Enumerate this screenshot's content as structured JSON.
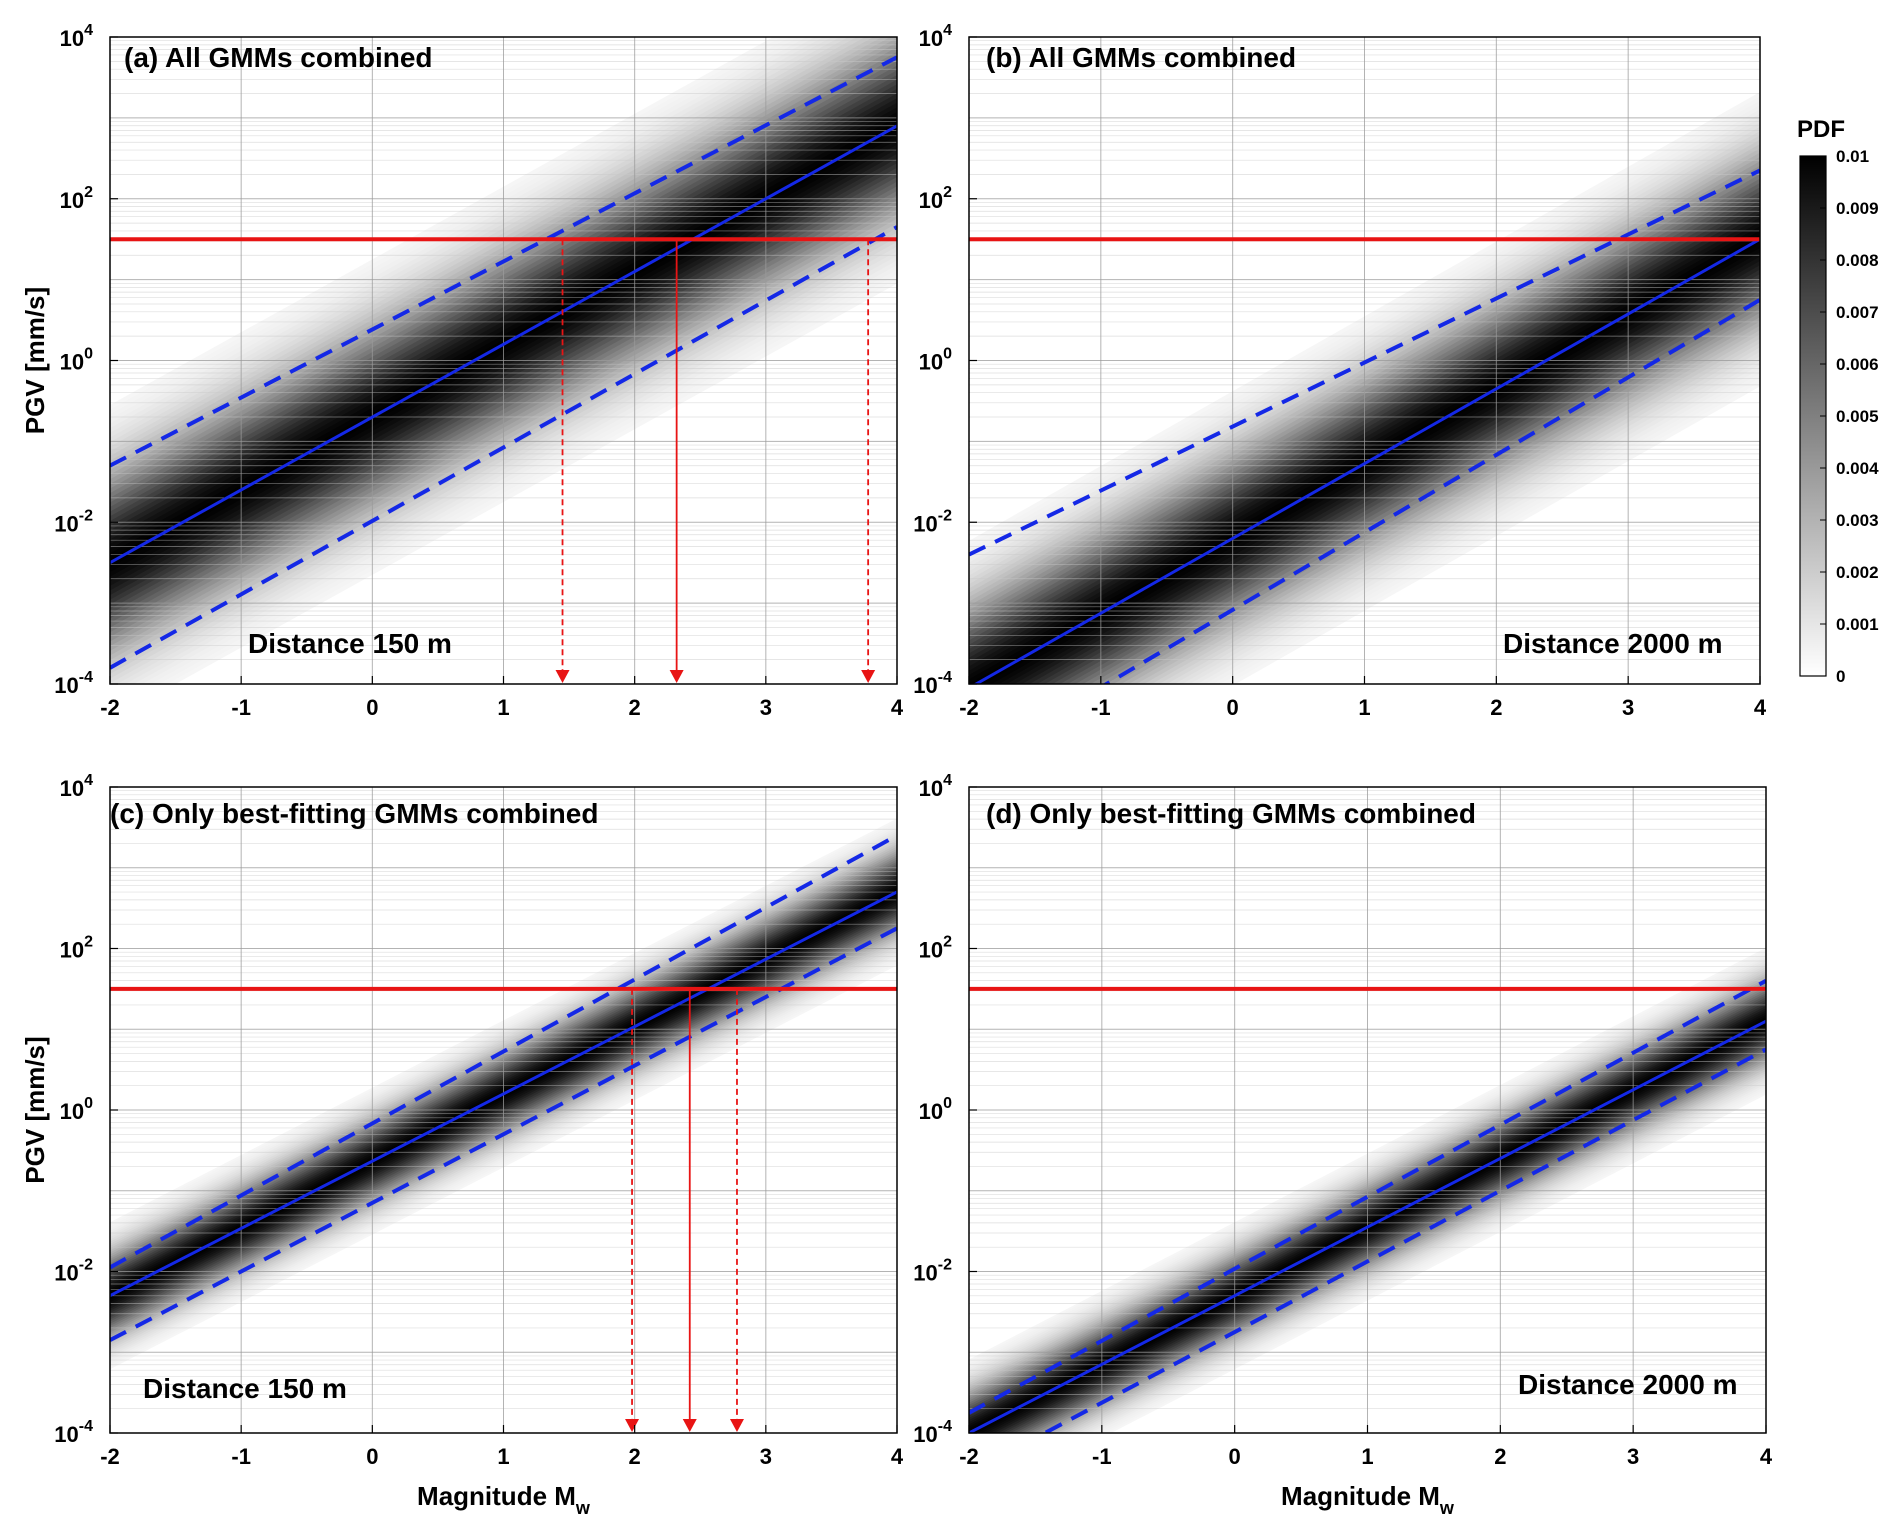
{
  "colors": {
    "mean_line": "#1428e6",
    "threshold": "#e81414",
    "pdf_high": "#000000",
    "pdf_low": "#ffffff"
  },
  "chart_data": [
    {
      "type": "heatmap",
      "panel_title": "(a) All GMMs combined",
      "annotation": "Distance 150 m",
      "xlabel": "",
      "ylabel": "PGV [mm/s]",
      "xlim": [
        -2,
        4
      ],
      "ylim_log10": [
        -4,
        4
      ],
      "yscale": "log",
      "x_ticks": [
        "-2",
        "-1",
        "0",
        "1",
        "2",
        "3",
        "4"
      ],
      "y_ticks": [
        {
          "base": "10",
          "exp": "-4"
        },
        {
          "base": "10",
          "exp": "-2"
        },
        {
          "base": "10",
          "exp": "0"
        },
        {
          "base": "10",
          "exp": "2"
        },
        {
          "base": "10",
          "exp": "4"
        }
      ],
      "grid": true,
      "pdf_spread_log10": 0.75,
      "series": [
        {
          "line": "solid",
          "x": [
            -2,
            4
          ],
          "log10_y": [
            -2.5,
            2.9
          ]
        },
        {
          "line": "dashed",
          "x": [
            -2,
            4
          ],
          "log10_y": [
            -1.3,
            3.75
          ]
        },
        {
          "line": "dashed",
          "x": [
            -2,
            4
          ],
          "log10_y": [
            -3.8,
            1.65
          ]
        }
      ],
      "threshold_log10": 1.5,
      "arrows": [
        {
          "x": 1.45,
          "style": "dashed"
        },
        {
          "x": 2.32,
          "style": "solid"
        },
        {
          "x": 3.78,
          "style": "dashed"
        }
      ]
    },
    {
      "type": "heatmap",
      "panel_title": "(b) All GMMs combined",
      "annotation": "Distance 2000 m",
      "xlabel": "",
      "ylabel": "",
      "xlim": [
        -2,
        4
      ],
      "ylim_log10": [
        -4,
        4
      ],
      "yscale": "log",
      "x_ticks": [
        "-2",
        "-1",
        "0",
        "1",
        "2",
        "3",
        "4"
      ],
      "y_ticks": [
        {
          "base": "10",
          "exp": "-4"
        },
        {
          "base": "10",
          "exp": "-2"
        },
        {
          "base": "10",
          "exp": "0"
        },
        {
          "base": "10",
          "exp": "2"
        },
        {
          "base": "10",
          "exp": "4"
        }
      ],
      "grid": true,
      "pdf_spread_log10": 0.7,
      "series": [
        {
          "line": "solid",
          "x": [
            -2,
            4
          ],
          "log10_y": [
            -4.05,
            1.5
          ]
        },
        {
          "line": "dashed",
          "x": [
            -2,
            4
          ],
          "log10_y": [
            -2.4,
            2.35
          ]
        },
        {
          "line": "dashed",
          "x": [
            -2,
            4
          ],
          "log10_y": [
            -5.0,
            0.75
          ]
        }
      ],
      "threshold_log10": 1.5,
      "arrows": []
    },
    {
      "type": "heatmap",
      "panel_title": "(c) Only best-fitting GMMs combined",
      "annotation": "Distance 150 m",
      "xlabel": "Magnitude M",
      "xlabel_sub": "w",
      "ylabel": "PGV [mm/s]",
      "xlim": [
        -2,
        4
      ],
      "ylim_log10": [
        -4,
        4
      ],
      "yscale": "log",
      "x_ticks": [
        "-2",
        "-1",
        "0",
        "1",
        "2",
        "3",
        "4"
      ],
      "y_ticks": [
        {
          "base": "10",
          "exp": "-4"
        },
        {
          "base": "10",
          "exp": "-2"
        },
        {
          "base": "10",
          "exp": "0"
        },
        {
          "base": "10",
          "exp": "2"
        },
        {
          "base": "10",
          "exp": "4"
        }
      ],
      "grid": true,
      "pdf_spread_log10": 0.35,
      "series": [
        {
          "line": "solid",
          "x": [
            -2,
            4
          ],
          "log10_y": [
            -2.3,
            2.7
          ]
        },
        {
          "line": "dashed",
          "x": [
            -2,
            4
          ],
          "log10_y": [
            -1.95,
            3.4
          ]
        },
        {
          "line": "dashed",
          "x": [
            -2,
            4
          ],
          "log10_y": [
            -2.85,
            2.25
          ]
        }
      ],
      "threshold_log10": 1.5,
      "arrows": [
        {
          "x": 1.98,
          "style": "dashed"
        },
        {
          "x": 2.42,
          "style": "solid"
        },
        {
          "x": 2.78,
          "style": "dashed"
        }
      ]
    },
    {
      "type": "heatmap",
      "panel_title": "(d) Only best-fitting GMMs combined",
      "annotation": "Distance 2000 m",
      "xlabel": "Magnitude M",
      "xlabel_sub": "w",
      "ylabel": "",
      "xlim": [
        -2,
        4
      ],
      "ylim_log10": [
        -4,
        4
      ],
      "yscale": "log",
      "x_ticks": [
        "-2",
        "-1",
        "0",
        "1",
        "2",
        "3",
        "4"
      ],
      "y_ticks": [
        {
          "base": "10",
          "exp": "-4"
        },
        {
          "base": "10",
          "exp": "-2"
        },
        {
          "base": "10",
          "exp": "0"
        },
        {
          "base": "10",
          "exp": "2"
        },
        {
          "base": "10",
          "exp": "4"
        }
      ],
      "grid": true,
      "pdf_spread_log10": 0.35,
      "series": [
        {
          "line": "solid",
          "x": [
            -2,
            4
          ],
          "log10_y": [
            -4.0,
            1.1
          ]
        },
        {
          "line": "dashed",
          "x": [
            -2,
            4
          ],
          "log10_y": [
            -3.75,
            1.6
          ]
        },
        {
          "line": "dashed",
          "x": [
            -2,
            4
          ],
          "log10_y": [
            -4.5,
            0.75
          ]
        }
      ],
      "threshold_log10": 1.5,
      "arrows": []
    }
  ],
  "colorbar": {
    "title": "PDF",
    "range": [
      0,
      0.01
    ],
    "ticks": [
      "0.01",
      "0.009",
      "0.008",
      "0.007",
      "0.006",
      "0.005",
      "0.004",
      "0.003",
      "0.002",
      "0.001",
      "0"
    ]
  }
}
